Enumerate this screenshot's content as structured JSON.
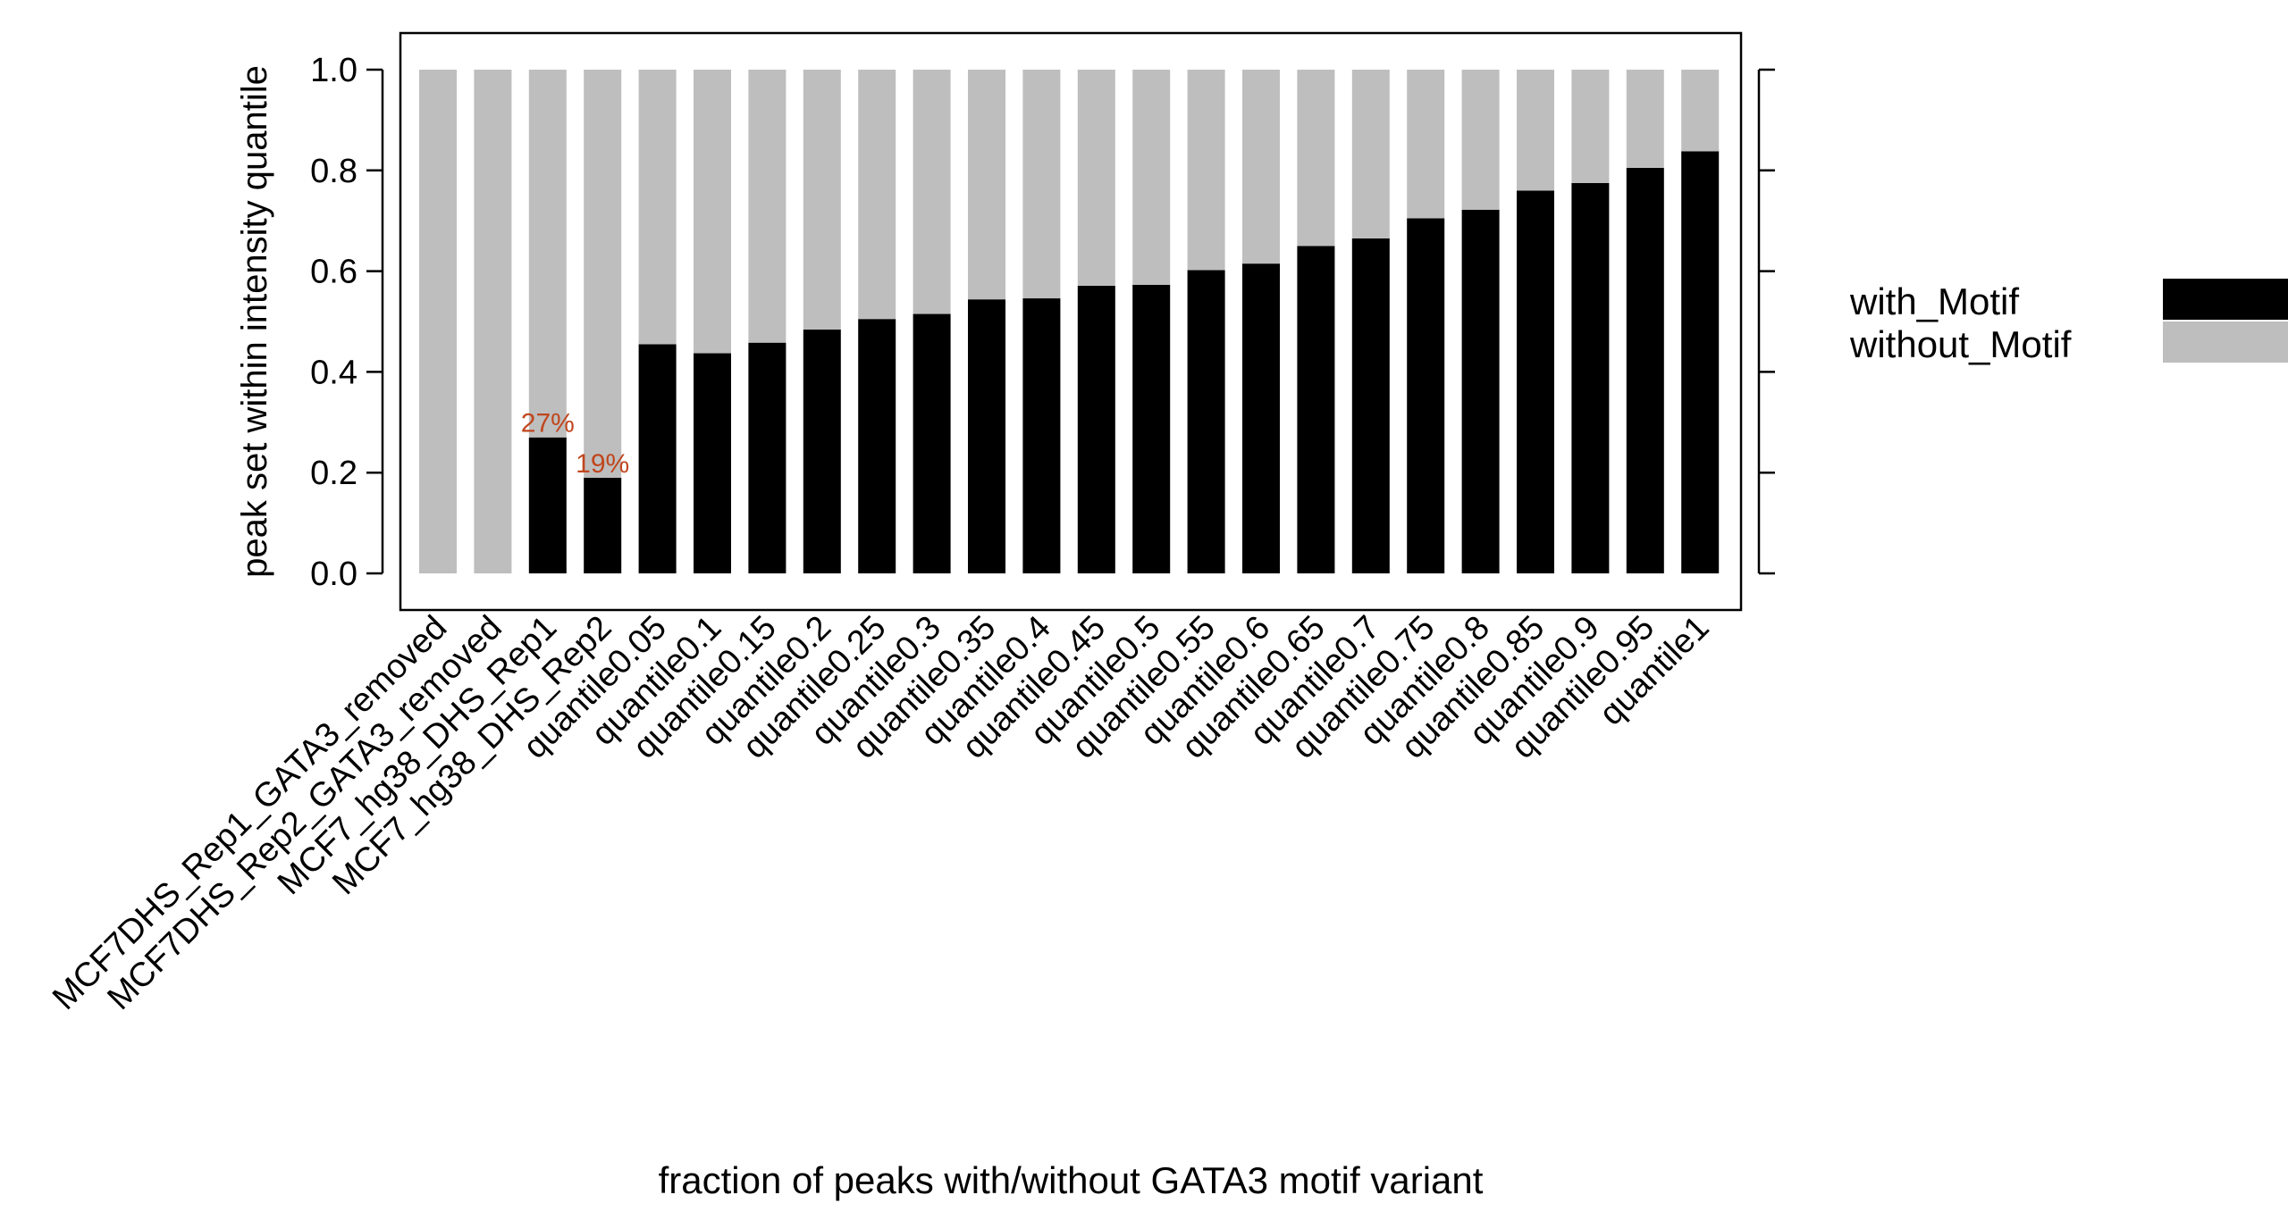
{
  "chart_data": {
    "type": "bar",
    "stacked": true,
    "xlabel": "fraction of peaks with/without GATA3 motif variant",
    "ylabel": "peak set within intensity quantile",
    "ylim": [
      0,
      1
    ],
    "y_ticks": [
      "0.0",
      "0.2",
      "0.4",
      "0.6",
      "0.8",
      "1.0"
    ],
    "categories": [
      "MCF7DHS_Rep1_GATA3_removed",
      "MCF7DHS_Rep2_GATA3_removed",
      "MCF7_hg38_DHS_Rep1",
      "MCF7_hg38_DHS_Rep2",
      "quantile0.05",
      "quantile0.1",
      "quantile0.15",
      "quantile0.2",
      "quantile0.25",
      "quantile0.3",
      "quantile0.35",
      "quantile0.4",
      "quantile0.45",
      "quantile0.5",
      "quantile0.55",
      "quantile0.6",
      "quantile0.65",
      "quantile0.7",
      "quantile0.75",
      "quantile0.8",
      "quantile0.85",
      "quantile0.9",
      "quantile0.95",
      "quantile1"
    ],
    "series": [
      {
        "name": "with_Motif",
        "color": "#000000",
        "values": [
          0.0,
          0.0,
          0.27,
          0.19,
          0.455,
          0.437,
          0.458,
          0.484,
          0.505,
          0.515,
          0.544,
          0.546,
          0.571,
          0.573,
          0.602,
          0.615,
          0.65,
          0.665,
          0.705,
          0.722,
          0.76,
          0.775,
          0.805,
          0.838
        ]
      },
      {
        "name": "without_Motif",
        "color": "#bebebe",
        "values": [
          1.0,
          1.0,
          0.73,
          0.81,
          0.545,
          0.563,
          0.542,
          0.516,
          0.495,
          0.485,
          0.456,
          0.454,
          0.429,
          0.427,
          0.398,
          0.385,
          0.35,
          0.335,
          0.295,
          0.278,
          0.24,
          0.225,
          0.195,
          0.162
        ]
      }
    ],
    "annotations": [
      {
        "category_index": 2,
        "text": "27%",
        "color": "#c0461e"
      },
      {
        "category_index": 3,
        "text": "19%",
        "color": "#c0461e"
      }
    ],
    "legend_position": "right",
    "grid": false
  }
}
